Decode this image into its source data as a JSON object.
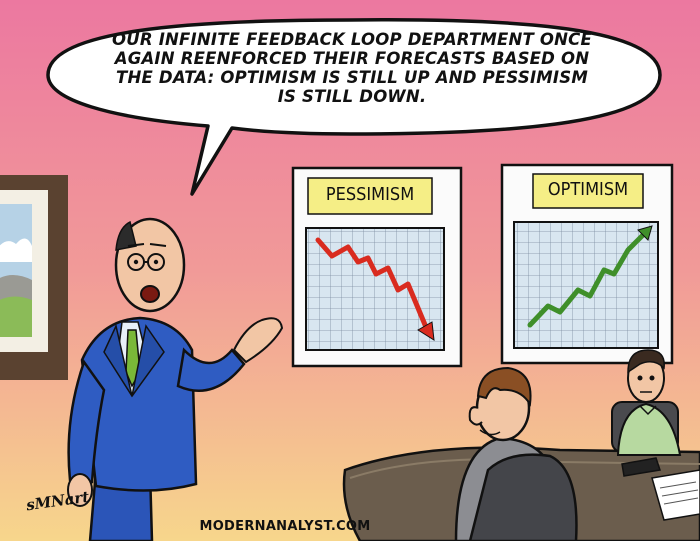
{
  "speech_bubble": {
    "lines": [
      "OUR INFINITE FEEDBACK LOOP DEPARTMENT ONCE",
      "AGAIN REENFORCED THEIR FORECASTS BASED ON",
      "THE DATA: OPTIMISM IS STILL UP AND PESSIMISM",
      "IS STILL DOWN."
    ]
  },
  "charts": {
    "left": {
      "title": "PESSIMISM",
      "trend": "down",
      "line_color": "#d92b1f"
    },
    "right": {
      "title": "OPTIMISM",
      "trend": "up",
      "line_color": "#3f8f2a"
    }
  },
  "credit": "MODERNANALYST.COM",
  "signature": "sMNart",
  "colors": {
    "wall_top": "#ee7ba0",
    "wall_bottom": "#f6d38d",
    "suit": "#2b55b8",
    "chart_bg": "#d6e4ef",
    "label_bg": "#f5ee86",
    "desk": "#6f6250"
  }
}
